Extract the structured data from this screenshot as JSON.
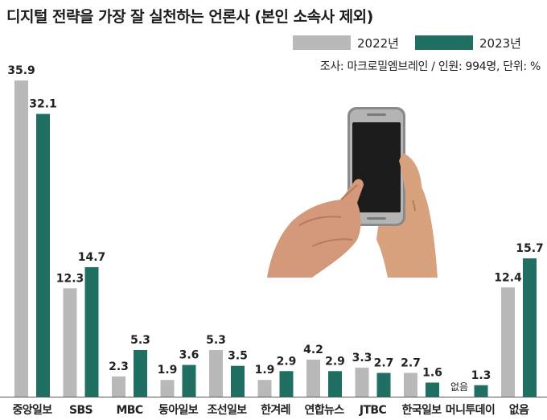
{
  "header": {
    "title": "디지털 전략을 가장 잘 실천하는 언론사 (본인 소속사 제외)",
    "source": "조사: 마크로밀엠브레인 / 인원: 994명, 단위: %"
  },
  "legend": [
    {
      "label": "2022년",
      "color": "#b9b9b9"
    },
    {
      "label": "2023년",
      "color": "#1f7063"
    }
  ],
  "illustration": {
    "icon": "smartphone-in-hands-icon"
  },
  "chart_data": {
    "type": "bar",
    "title": "디지털 전략을 가장 잘 실천하는 언론사 (본인 소속사 제외)",
    "categories": [
      "중앙일보",
      "SBS",
      "MBC",
      "동아일보",
      "조선일보",
      "한겨레",
      "연합뉴스",
      "JTBC",
      "한국일보",
      "머니투데이",
      "없음"
    ],
    "series": [
      {
        "name": "2022년",
        "color": "#b9b9b9",
        "values": [
          35.9,
          12.3,
          2.3,
          1.9,
          5.3,
          1.9,
          4.2,
          3.3,
          2.7,
          null,
          12.4
        ]
      },
      {
        "name": "2023년",
        "color": "#1f7063",
        "values": [
          32.1,
          14.7,
          5.3,
          3.6,
          3.5,
          2.9,
          2.9,
          2.7,
          1.6,
          1.3,
          15.7
        ]
      }
    ],
    "missing_label": "없음",
    "ylim": [
      0,
      35.9
    ],
    "unit": "%"
  }
}
